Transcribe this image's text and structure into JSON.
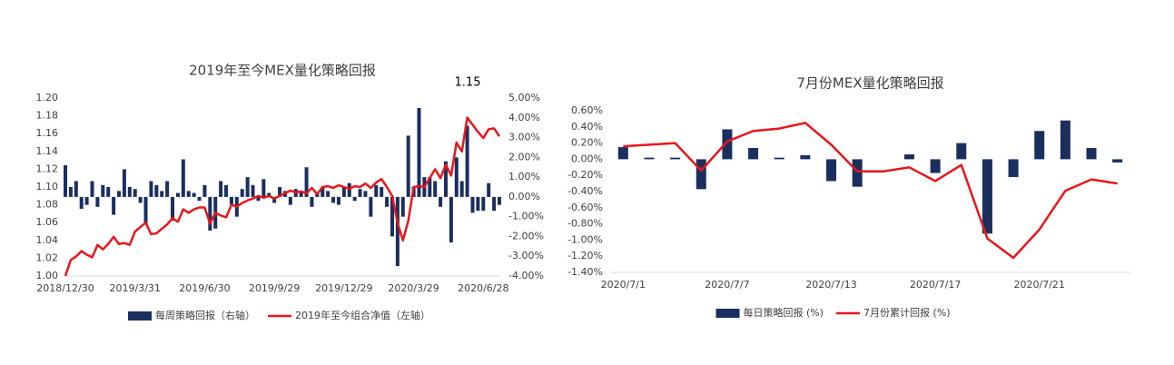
{
  "chart_data": [
    {
      "type": "bar-line",
      "title": "2019年至今MEX量化策略回报",
      "annotation": "1.15",
      "categories": [
        "2018/12/30",
        null,
        null,
        null,
        null,
        null,
        null,
        null,
        null,
        null,
        null,
        null,
        null,
        "2019/3/31",
        null,
        null,
        null,
        null,
        null,
        null,
        null,
        null,
        null,
        null,
        null,
        null,
        "2019/6/30",
        null,
        null,
        null,
        null,
        null,
        null,
        null,
        null,
        null,
        null,
        null,
        null,
        "2019/9/29",
        null,
        null,
        null,
        null,
        null,
        null,
        null,
        null,
        null,
        null,
        null,
        null,
        "2019/12/29",
        null,
        null,
        null,
        null,
        null,
        null,
        null,
        null,
        null,
        null,
        null,
        null,
        "2020/3/29",
        null,
        null,
        null,
        null,
        null,
        null,
        null,
        null,
        null,
        null,
        null,
        null,
        "2020/6/28",
        null,
        null,
        null
      ],
      "ylim": [
        1.0,
        1.2
      ],
      "yticks": [
        {
          "value": 1.0,
          "label": "1.00"
        },
        {
          "value": 1.02,
          "label": "1.02"
        },
        {
          "value": 1.04,
          "label": "1.04"
        },
        {
          "value": 1.06,
          "label": "1.06"
        },
        {
          "value": 1.08,
          "label": "1.08"
        },
        {
          "value": 1.1,
          "label": "1.10"
        },
        {
          "value": 1.12,
          "label": "1.12"
        },
        {
          "value": 1.14,
          "label": "1.14"
        },
        {
          "value": 1.16,
          "label": "1.16"
        },
        {
          "value": 1.18,
          "label": "1.18"
        },
        {
          "value": 1.2,
          "label": "1.20"
        }
      ],
      "y2lim": [
        -4,
        5
      ],
      "y2ticks": [
        {
          "value": -4,
          "label": "-4.00%"
        },
        {
          "value": -3,
          "label": "-3.00%"
        },
        {
          "value": -2,
          "label": "-2.00%"
        },
        {
          "value": -1,
          "label": "-1.00%"
        },
        {
          "value": 0,
          "label": "0.00%"
        },
        {
          "value": 1,
          "label": "1.00%"
        },
        {
          "value": 2,
          "label": "2.00%"
        },
        {
          "value": 3,
          "label": "3.00%"
        },
        {
          "value": 4,
          "label": "4.00%"
        },
        {
          "value": 5,
          "label": "5.00%"
        }
      ],
      "series": [
        {
          "name": "每周策略回报（右轴）",
          "color": "#1b2f5f",
          "kind": "bar",
          "axis": "y2",
          "values": [
            1.6,
            0.5,
            0.8,
            -0.6,
            -0.4,
            0.8,
            -0.5,
            0.6,
            0.5,
            -0.9,
            0.3,
            1.4,
            0.5,
            0.4,
            -0.3,
            -1.4,
            0.8,
            0.6,
            0.3,
            0.8,
            -1.2,
            0.2,
            1.9,
            0.3,
            0.2,
            -0.2,
            0.6,
            -1.7,
            -1.6,
            0.8,
            0.6,
            -0.4,
            -1.0,
            0.4,
            1.0,
            0.6,
            -0.2,
            0.9,
            0.2,
            -0.3,
            0.5,
            0.3,
            -0.4,
            0.4,
            0.3,
            1.5,
            -0.5,
            0.2,
            0.5,
            0.3,
            -0.3,
            -0.4,
            0.5,
            0.7,
            -0.2,
            0.4,
            0.3,
            -1.0,
            0.6,
            0.5,
            -0.5,
            -2.0,
            -3.5,
            -1.0,
            3.1,
            0.5,
            4.5,
            1.0,
            1.0,
            0.8,
            -0.5,
            1.8,
            -2.3,
            2.0,
            0.8,
            3.6,
            -0.8,
            -0.7,
            -0.7,
            0.7,
            -0.7,
            -0.4
          ]
        },
        {
          "name": "2019年至今组合净值（左轴）",
          "color": "#e8161b",
          "kind": "line",
          "values": [
            1.0,
            1.018,
            1.022,
            1.028,
            1.024,
            1.021,
            1.035,
            1.03,
            1.036,
            1.044,
            1.036,
            1.037,
            1.035,
            1.05,
            1.055,
            1.06,
            1.047,
            1.048,
            1.053,
            1.058,
            1.065,
            1.061,
            1.075,
            1.071,
            1.075,
            1.077,
            1.077,
            1.059,
            1.071,
            1.068,
            1.066,
            1.08,
            1.078,
            1.082,
            1.085,
            1.087,
            1.09,
            1.088,
            1.09,
            1.087,
            1.09,
            1.093,
            1.096,
            1.094,
            1.095,
            1.093,
            1.099,
            1.092,
            1.1,
            1.101,
            1.099,
            1.102,
            1.1,
            1.098,
            1.101,
            1.1,
            1.104,
            1.099,
            1.105,
            1.109,
            1.1,
            1.09,
            1.06,
            1.04,
            1.062,
            1.1,
            1.101,
            1.1,
            1.11,
            1.12,
            1.11,
            1.125,
            1.113,
            1.15,
            1.14,
            1.178,
            1.17,
            1.162,
            1.155,
            1.165,
            1.166,
            1.157
          ]
        }
      ]
    },
    {
      "type": "bar-line",
      "title": "7月份MEX量化策略回报",
      "categories": [
        "2020/7/1",
        null,
        null,
        null,
        "2020/7/7",
        null,
        null,
        null,
        "2020/7/13",
        null,
        null,
        null,
        "2020/7/17",
        null,
        null,
        null,
        "2020/7/21",
        null,
        null,
        null
      ],
      "ylim": [
        -1.4,
        0.6
      ],
      "yticks": [
        {
          "value": -1.4,
          "label": "-1.40%"
        },
        {
          "value": -1.2,
          "label": "-1.20%"
        },
        {
          "value": -1.0,
          "label": "-1.00%"
        },
        {
          "value": -0.8,
          "label": "-0.80%"
        },
        {
          "value": -0.6,
          "label": "-0.60%"
        },
        {
          "value": -0.4,
          "label": "-0.40%"
        },
        {
          "value": -0.2,
          "label": "-0.20%"
        },
        {
          "value": 0,
          "label": "0.00%"
        },
        {
          "value": 0.2,
          "label": "0.20%"
        },
        {
          "value": 0.4,
          "label": "0.40%"
        },
        {
          "value": 0.6,
          "label": "0.60%"
        }
      ],
      "series": [
        {
          "name": "每日策略回报 (%)",
          "color": "#1b2f5f",
          "kind": "bar",
          "values": [
            0.15,
            0.02,
            0.02,
            -0.37,
            0.37,
            0.14,
            0.02,
            0.05,
            -0.27,
            -0.34,
            0,
            0.06,
            -0.17,
            0.2,
            -0.92,
            -0.22,
            0.35,
            0.48,
            0.14,
            -0.04
          ]
        },
        {
          "name": "7月份累计回报 (%)",
          "color": "#e8161b",
          "kind": "line",
          "values": [
            0.16,
            0.18,
            0.2,
            -0.14,
            0.22,
            0.35,
            0.38,
            0.45,
            0.18,
            -0.15,
            -0.15,
            -0.1,
            -0.27,
            -0.07,
            -0.98,
            -1.22,
            -0.87,
            -0.39,
            -0.25,
            -0.3
          ]
        }
      ]
    }
  ]
}
